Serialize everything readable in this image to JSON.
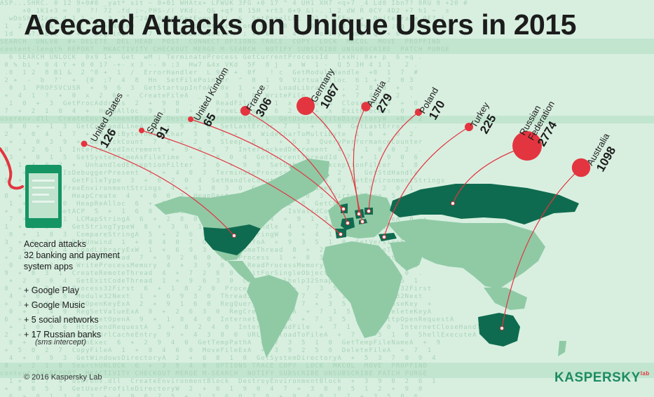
{
  "title": "Acecard Attacks on Unique Users in 2015",
  "info": {
    "heading_lines": [
      "Acecard attacks",
      "32 banking and payment",
      "system apps"
    ],
    "items": [
      "+ Google Play",
      "+ Google Music",
      "+ 5 social networks",
      "+ 17 Russian banks"
    ],
    "note": "(sms intercept)"
  },
  "footer": {
    "copyright": "© 2016 Kaspersky Lab",
    "logo": "KASPERSKY",
    "logo_sup": "lab"
  },
  "colors": {
    "attacked": "#0f6b4f",
    "land": "#8fcaa5",
    "marker": "#e3353f",
    "background": "#d8efe0",
    "text": "#1c1c1c"
  },
  "chart_data": {
    "type": "bubble-map",
    "title": "Acecard Attacks on Unique Users in 2015",
    "units": "unique users attacked",
    "countries": [
      {
        "name": "United States",
        "value": 126
      },
      {
        "name": "Spain",
        "value": 91
      },
      {
        "name": "United Kindom",
        "value": 65
      },
      {
        "name": "France",
        "value": 306
      },
      {
        "name": "Germany",
        "value": 1067
      },
      {
        "name": "Austria",
        "value": 279
      },
      {
        "name": "Poland",
        "value": 170
      },
      {
        "name": "Turkey",
        "value": 225
      },
      {
        "name": "Russian Federation",
        "label_lines": [
          "Russian",
          "Federation"
        ],
        "value": 2774
      },
      {
        "name": "Australia",
        "value": 1098
      }
    ]
  },
  "background_code": [
    "ASP..,SHRC. 0 12 9+0#0 _yat* sit ~ 0+01 WHAtx+ LFWUK 3FG +0 17 ^ 4 UH1 XH7 <q+7 _4 Ld0 Ibn7? 8RU 0 +20 #",
    "     +0 1K1+3 =  0  ?! 72 .fd ;~,PHS-/! VKd:. Q& +qf 8 15H +rt3 0+9 &)-. 1 2 dW R 0CY 4D2 +7 h1 ~  s",
    "  wDoShowIcon 4-1 1 ~   3_ 3 0^24  ReadyGetEvent !!  &  SetPixelLoc  D1 7 *FFv  +  QuiteFrame 0E? j",
    " 1  2 (  4 &_1  < ,  MakeNoteD  ! P1s !  S $ GetLocation  6 ,  8  -  0x 1 3 2  ;Pw  +0 ;8q _j",
    " 1d   %?. Evc  0 +   BigMiners   7 + L  CrashHandler  ; +0 6x  _ 4 .  PolicyFrame  q  + 0 ~",
    "SEARCH  UNLVB  #+ DELETE  DEL HEAD  POST  CONNECT OPTIONS TRACE  COPY  LOCK  MKCOL  MOVE  PROPFIND",
    "content-length REPORT  MKACTIVITY CHECKOUT MERGE M-SEARCH  NOTIFY SUBSCRIBE UNSUBSCRIBE  PATCH PURGE",
    "  6 SEARCH UNLOCK  0x9 1+  Get  wM ; TerminateProcess GetCurrentProcessId  [xxH; 0x+ p  6 =q .",
    " 0 % bi * 0 4 Y + 0 0 17 -+- x 3 -- 0 ;3  Hw7 &4x VKd  5F  8 j  a  W  1 -  Q 5 3H 4 1 1   2 .",
    " .0  1 2  8 B1 &  2 ^0 +  1  /  ErrorHandler  L 9 0 +  0f   ! c  GetModuleHandle  +0  1  7  #",
    " 2 +  -  b  ?'  +  {0  ;7  4  8  Hn  SetFilePointer  ^  0  1  9  VirtualAlloc  6 1 +  2  0 3",
    "  0  1  PROFSVCUSR  +  9  6  3  GetStartupInfoA  0x  1  +  7  LoadLibraryA  ,  2  8  0  +  s",
    " +  4  1  ?  +  0  x  2  6  +  CreateFileA  _  !  3  0  8  WriteFile  ;  1  +  7  4  0  2  .",
    "  1  0  +  3  GetProcAddress  2  +  9  8  .  4  ReadFile  0  1  x  +  6  3  CloseHandle  +  0",
    " 7  +  2  1  0  4  +  HeapAlloc  9  3  8  +  0  FreeLibrary  6  2  1  +  x  ExitProcess  0  3",
    "userenv.dll  CreateEnvironmentBlock  DestroyEnvironmentBlock  GetUserProfileDirectoryW  +0 1 2",
    "  8  0  +  1  3  GetCommandLineA  4  +  9  2  0  SetLastError  7  1  +  6  0  GetLastError  .",
    " 2  +  0  4  1  7  +  MultiByteToWideChar  3  0  9  +  8  WideCharToMultiByte  1  6  +  0  2",
    "  +  1  0  3  9  +  GetTickCount  7  4  +  2  0  Sleep  8  1  +  6  3  QueryPerformanceCounter",
    " 0  +  2  6  1  InterlockedIncrement  +  9  0  3  7  InterlockedDecrement  4  +  1  8  0  2  .",
    "  3  +  0  1  5  GetSystemTimeAsFileTime  +  2  8  0  4  GetCurrentThreadId  7  +  1  9  0  6",
    " +  1  4  0  2  +  UnhandledExceptionFilter  3  6  +  9  0  SetUnhandledExceptionFilter  1  8",
    "  0  +  7  2  IsDebuggerPresent  1  +  4  0  3  TerminateProcess  9  6  +  2  0  GetStdHandle",
    " 5  +  0  8  1  GetFileType  3  +  6  2  0  4  SetHandleCount  +  7  1  9  0  GetEnvironmentStrings",
    "  +  2  0  6  FreeEnvironmentStrings  4  +  1  8  3  0  GetModuleFileNameA  7  +  9  2  0  1  .",
    " 0  +  3  1  7  HeapCreate  4  +  6  0  2  HeapDestroy  8  +  1  9  0  3  VirtualFree  5  +  0",
    "  1  +  2  4  0  HeapReAlloc  6  +  3  9  1  HeapSize  0  +  7  2  8  GetCPInfo  4  +  1  0  3",
    " +  9  0  2  GetACP  5  +  1  6  0  GetOEMCP  3  +  8  7  1  0  IsValidCodePage  2  +  4  9  0",
    "  7  +  0  3  1  LCMapStringA  6  +  2  8  0  LCMapStringW  4  +  9  1  3  GetStringTypeA  0  +",
    " 1  +  5  0  2  GetStringTypeW  8  +  3  6  1  0  SetStdHandle  4  +  7  2  9  FlushFileBuffers",
    "  0  +  1  8  3  CompareStringA  5  +  2  6  0  CompareStringW  9  +  4  1  7  SetEnvironmentVar",
    " 3  +  0  2  6  RtlUnwind  1  +  8  4  0  7  GetLocaleInfoA  +  9  3  5  1  0  GetVersionExA  +",
    "  2  +  7  0  4  LoadLibraryExW  1  +  6  9  3  0  ResumeThread  8  +  2  5  1  CreateThread  0",
    " +  4  1  0  3  SuspendThread  7  +  9  2  6  0  OpenProcess  1  +  8  3  5  VirtualProtectEx +",
    "  0  +  6  2  1  WriteProcessMemory  4  +  3  9  0  7  ReadProcessMemory  +  1  8  5  2  0  6",
    " 9  +  0  3  1  CreateRemoteThread  4  +  7  2  8  0  WaitForSingleObject  6  +  1  5  3  0  .",
    "  +  2  8  0  4  GetExitCodeThread  1  +  9  6  3  0  CreateToolhelp32Snapshot  7  +  2  5  1",
    " 0  +  4  9  3  Process32First  6  +  1  8  2  0  Process32Next  +  7  3  5  0  1  Module32First",
    "  4  +  0  2  8  Module32Next  1  +  6  9  3  0  Thread32First  +  7  2  5  1  0  Thread32Next",
    " +  3  0  8  4  RegOpenKeyExA  2  +  9  1  6  0  RegQueryValueExA  7  +  3  5  0  RegCloseKey  +",
    "  0  +  1  4  9  RegSetValueExA  8  +  2  6  3  0  RegCreateKeyExA  +  7  1  5  0  RegDeleteKeyA",
    " 6  +  0  2  3  InternetOpenA  9  +  1  8  4  0  InternetConnectA  +  7  3  5  2  0  HttpOpenRequestA",
    "  +  1  0  9  6  HttpSendRequestA  3  +  8  2  4  0  InternetReadFile  +  7  1  5  3  0  InternetCloseHandle",
    " 2  +  0  6  1  DeleteUrlCacheEntry  9  +  4  3  8  0  URLDownloadToFileA  +  7  2  5  1  0  ShellExecuteA",
    "  0  +  3  8  1  WinExec  6  +  2  9  4  0  GetTempPathA  +  7  3  5  1  0  GetTempFileNameA  +  9",
    " +  5  0  2  7  CopyFileA  1  +  8  4  6  0  MoveFileExA  +  3  9  2  5  0  DeleteFileA  +  7  1",
    "  4  +  0  9  3  GetWindowsDirectoryA  2  +  6  8  1  0  GetSystemDirectoryA  +  5  3  7  0  9  4",
    " 0  +  2  1  8  SearchUNLOCK  6  +  3  9  4  0  OPTIONS TRACE COPY  LOCK  MKCOL  MOVE  PROPFIND",
    "content-lenREPORT  MKACTIVITY CHECKOUT MERGE M-SEARCH  NOTIFY SUBSCRIBE UNSUBSCRIBE PATCH PURGE",
    "  1 +  0  7  4  userenv.dll  CreateEnvironmentBlock  DestroyEnvironmentBlock  +  3  9  0  2  6  1",
    " +  8  0  5  3  GetUserProfileDirectoryW  2  +  6  1  9  0  4  7  +  3  8  0  5  1  2  +  9  0",
    "  6  +  0  1  3  8  2  +  4  9  0  7  5  +  1  3  6  0  2  8  +  9  4  0  1  7  +  3  5  0  6"
  ]
}
